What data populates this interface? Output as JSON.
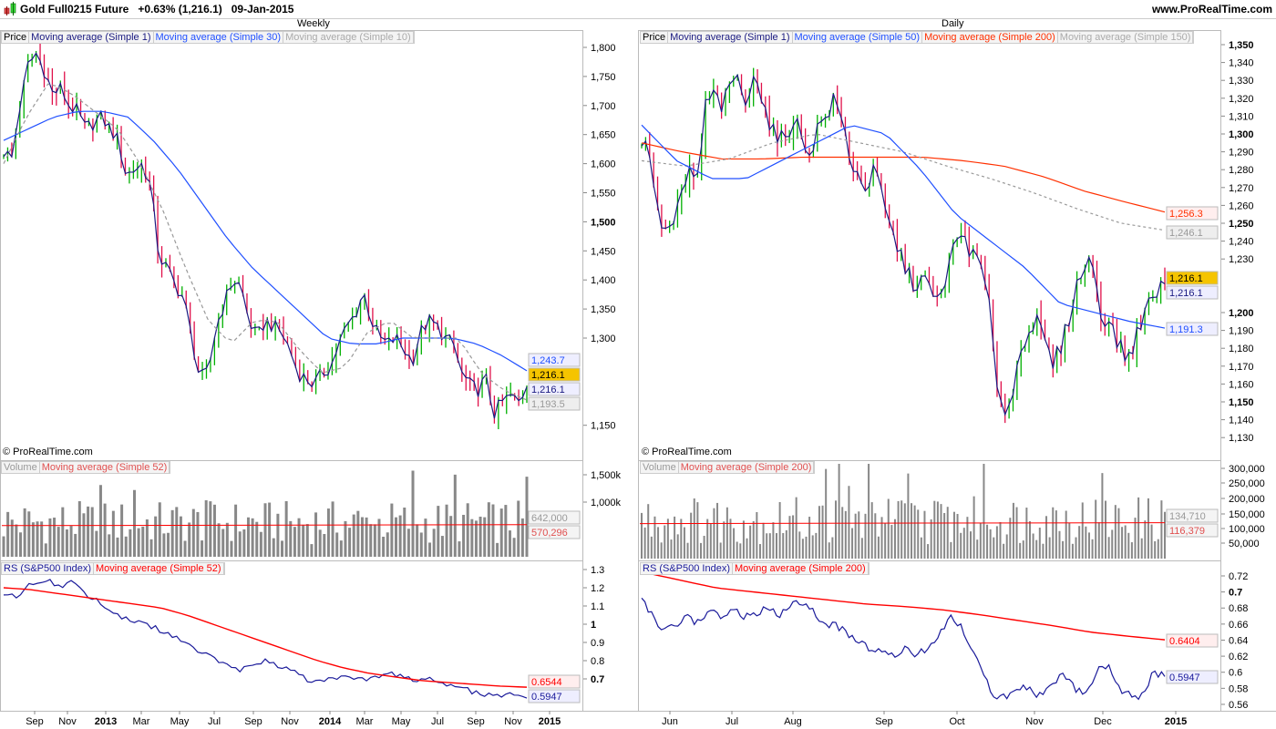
{
  "header": {
    "title": "Gold Full0215 Future   +0.63% (1,216.1)   09-Jan-2015",
    "website": "www.ProRealTime.com",
    "copyright": "© ProRealTime.com"
  },
  "colors": {
    "up": "#00b000",
    "down": "#e0104a",
    "ma1": "#1a1a80",
    "ma_fast": "#2050ff",
    "ma_slow_gray": "#999999",
    "ma_red": "#ff3000",
    "volume": "#888888",
    "rs": "#1a1a9a",
    "rs_ma": "#ff0000",
    "price_tag": "#f5c400"
  },
  "chart_data": [
    {
      "type": "candlestick",
      "period": "Weekly",
      "legend": [
        "Price",
        "Moving average (Simple 1)",
        "Moving average (Simple 30)",
        "Moving average (Simple 10)"
      ],
      "y_ticks": [
        "1,800",
        "1,750",
        "1,700",
        "1,650",
        "1,600",
        "1,550",
        "1,500",
        "1,450",
        "1,400",
        "1,350",
        "1,300",
        "1,150"
      ],
      "ylim": [
        1125,
        1825
      ],
      "x_ticks": [
        "Sep",
        "Nov",
        "2013",
        "Mar",
        "May",
        "Jul",
        "Sep",
        "Nov",
        "2014",
        "Mar",
        "May",
        "Jul",
        "Sep",
        "Nov",
        "2015"
      ],
      "closes": [
        1620,
        1610,
        1700,
        1770,
        1790,
        1760,
        1720,
        1730,
        1700,
        1690,
        1660,
        1670,
        1680,
        1660,
        1640,
        1580,
        1590,
        1600,
        1560,
        1440,
        1420,
        1390,
        1370,
        1300,
        1230,
        1240,
        1320,
        1360,
        1400,
        1390,
        1330,
        1300,
        1330,
        1320,
        1310,
        1280,
        1240,
        1230,
        1220,
        1240,
        1250,
        1290,
        1320,
        1340,
        1380,
        1330,
        1300,
        1290,
        1300,
        1280,
        1260,
        1310,
        1330,
        1320,
        1300,
        1290,
        1240,
        1220,
        1210,
        1230,
        1170,
        1190,
        1200,
        1190,
        1216.1
      ],
      "ma30_anchors": [
        1640,
        1660,
        1680,
        1690,
        1690,
        1680,
        1640,
        1590,
        1530,
        1470,
        1420,
        1380,
        1340,
        1300,
        1290,
        1290,
        1300,
        1300,
        1300,
        1290,
        1270,
        1243.7
      ],
      "ma10_anchors": [
        1600,
        1680,
        1740,
        1720,
        1690,
        1660,
        1600,
        1520,
        1420,
        1330,
        1290,
        1330,
        1330,
        1280,
        1240,
        1250,
        1310,
        1330,
        1300,
        1300,
        1300,
        1240,
        1210,
        1193.5
      ],
      "value_tags": [
        "1,243.7",
        "1,216.1",
        "1,216.1",
        "1,193.5"
      ],
      "volume": {
        "legend": [
          "Volume",
          "Moving average (Simple 52)"
        ],
        "y_ticks": [
          "1,500k",
          "1,000k"
        ],
        "tags": [
          "642,000",
          "570,296"
        ],
        "ma": 570296
      },
      "rs": {
        "legend": [
          "RS (S&P500 Index)",
          "Moving average (Simple 52)"
        ],
        "y_ticks": [
          "1.3",
          "1.2",
          "1.1",
          "1",
          "0.9",
          "0.8",
          "0.7"
        ],
        "tags": [
          "0.6544",
          "0.5947"
        ],
        "line": [
          1.17,
          1.15,
          1.22,
          1.25,
          1.2,
          1.23,
          1.16,
          1.12,
          1.06,
          1.03,
          1.0,
          0.98,
          0.95,
          0.9,
          0.86,
          0.82,
          0.78,
          0.75,
          0.76,
          0.8,
          0.77,
          0.74,
          0.7,
          0.68,
          0.7,
          0.72,
          0.7,
          0.71,
          0.73,
          0.72,
          0.68,
          0.7,
          0.67,
          0.66,
          0.63,
          0.61,
          0.6,
          0.62,
          0.5947
        ],
        "ma_line": [
          1.2,
          1.19,
          1.17,
          1.15,
          1.13,
          1.11,
          1.09,
          1.05,
          1.0,
          0.95,
          0.9,
          0.85,
          0.8,
          0.76,
          0.73,
          0.71,
          0.69,
          0.68,
          0.67,
          0.66,
          0.6544
        ]
      }
    },
    {
      "type": "candlestick",
      "period": "Daily",
      "legend": [
        "Price",
        "Moving average (Simple 1)",
        "Moving average (Simple 50)",
        "Moving average (Simple 200)",
        "Moving average (Simple 150)"
      ],
      "y_ticks": [
        "1,350",
        "1,340",
        "1,330",
        "1,320",
        "1,310",
        "1,300",
        "1,290",
        "1,280",
        "1,270",
        "1,260",
        "1,250",
        "1,240",
        "1,230",
        "1,200",
        "1,190",
        "1,180",
        "1,170",
        "1,160",
        "1,150",
        "1,140",
        "1,130"
      ],
      "ylim": [
        1125,
        1362
      ],
      "x_ticks": [
        "Jun",
        "Jul",
        "Aug",
        "Sep",
        "Oct",
        "Nov",
        "Dec",
        "2015"
      ],
      "closes": [
        1295,
        1290,
        1255,
        1245,
        1250,
        1265,
        1280,
        1275,
        1318,
        1322,
        1315,
        1325,
        1335,
        1310,
        1340,
        1318,
        1305,
        1295,
        1300,
        1310,
        1295,
        1290,
        1305,
        1310,
        1320,
        1305,
        1285,
        1275,
        1270,
        1280,
        1262,
        1245,
        1235,
        1222,
        1215,
        1220,
        1210,
        1205,
        1225,
        1238,
        1245,
        1232,
        1228,
        1210,
        1165,
        1145,
        1150,
        1180,
        1190,
        1195,
        1185,
        1170,
        1180,
        1195,
        1215,
        1225,
        1230,
        1200,
        1195,
        1185,
        1175,
        1180,
        1195,
        1205,
        1212,
        1216.1
      ],
      "ma50_anchors": [
        1305,
        1285,
        1275,
        1275,
        1285,
        1295,
        1305,
        1300,
        1280,
        1255,
        1240,
        1225,
        1205,
        1200,
        1195,
        1191.3
      ],
      "ma200_anchors": [
        1295,
        1290,
        1286,
        1286,
        1287,
        1287,
        1287,
        1287,
        1285,
        1282,
        1276,
        1268,
        1262,
        1256.3
      ],
      "ma150_anchors": [
        1285,
        1282,
        1286,
        1295,
        1300,
        1295,
        1290,
        1282,
        1275,
        1267,
        1258,
        1250,
        1246.1
      ],
      "value_tags": [
        "1,256.3",
        "1,246.1",
        "1,216.1",
        "1,216.1",
        "1,191.3"
      ],
      "volume": {
        "legend": [
          "Volume",
          "Moving average (Simple 200)"
        ],
        "y_ticks": [
          "300,000",
          "250,000",
          "200,000",
          "150,000",
          "100,000",
          "50,000"
        ],
        "tags": [
          "134,710",
          "116,379"
        ],
        "ma": 116379
      },
      "rs": {
        "legend": [
          "RS (S&P500 Index)",
          "Moving average (Simple 200)"
        ],
        "y_ticks": [
          "0.72",
          "0.7",
          "0.68",
          "0.66",
          "0.64",
          "0.62",
          "0.6",
          "0.58",
          "0.56"
        ],
        "tags": [
          "0.6404",
          "0.5947"
        ],
        "line": [
          0.69,
          0.67,
          0.65,
          0.66,
          0.67,
          0.66,
          0.68,
          0.67,
          0.68,
          0.67,
          0.67,
          0.68,
          0.67,
          0.68,
          0.69,
          0.68,
          0.66,
          0.66,
          0.65,
          0.64,
          0.63,
          0.63,
          0.62,
          0.63,
          0.62,
          0.63,
          0.64,
          0.67,
          0.66,
          0.63,
          0.6,
          0.57,
          0.57,
          0.58,
          0.58,
          0.57,
          0.58,
          0.6,
          0.58,
          0.57,
          0.6,
          0.61,
          0.58,
          0.57,
          0.57,
          0.6,
          0.5947
        ],
        "ma_line": [
          0.725,
          0.715,
          0.705,
          0.7,
          0.695,
          0.69,
          0.685,
          0.682,
          0.678,
          0.672,
          0.665,
          0.658,
          0.65,
          0.645,
          0.6404
        ]
      }
    }
  ]
}
